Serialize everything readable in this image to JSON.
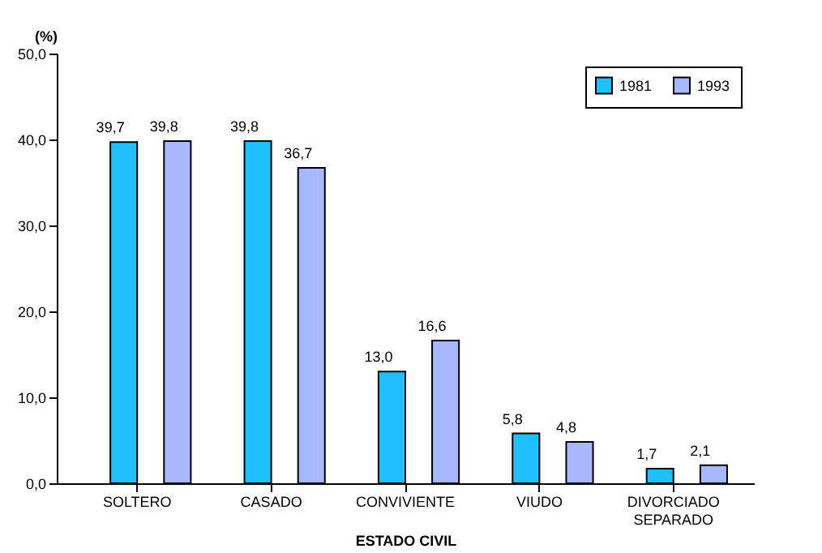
{
  "chart_data": {
    "type": "bar",
    "xlabel": "ESTADO CIVIL",
    "ylabel": "(%)",
    "categories": [
      "SOLTERO",
      "CASADO",
      "CONVIVIENTE",
      "VIUDO",
      "DIVORCIADO SEPARADO"
    ],
    "series": [
      {
        "name": "1981",
        "color": "#1fc0ff",
        "values": [
          39.7,
          39.8,
          13.0,
          5.8,
          1.7
        ],
        "value_labels": [
          "39,7",
          "39,8",
          "13,0",
          "5,8",
          "1,7"
        ]
      },
      {
        "name": "1993",
        "color": "#a8b8ff",
        "values": [
          39.8,
          36.7,
          16.6,
          4.8,
          2.1
        ],
        "value_labels": [
          "39,8",
          "36,7",
          "16,6",
          "4,8",
          "2,1"
        ]
      }
    ],
    "ylim": [
      0,
      50
    ],
    "yticks": [
      {
        "value": 0,
        "label": "0,0"
      },
      {
        "value": 10,
        "label": "10,0"
      },
      {
        "value": 20,
        "label": "20,0"
      },
      {
        "value": 30,
        "label": "30,0"
      },
      {
        "value": 40,
        "label": "40,0"
      },
      {
        "value": 50,
        "label": "50,0"
      }
    ],
    "grid": false,
    "legend": "top right"
  }
}
